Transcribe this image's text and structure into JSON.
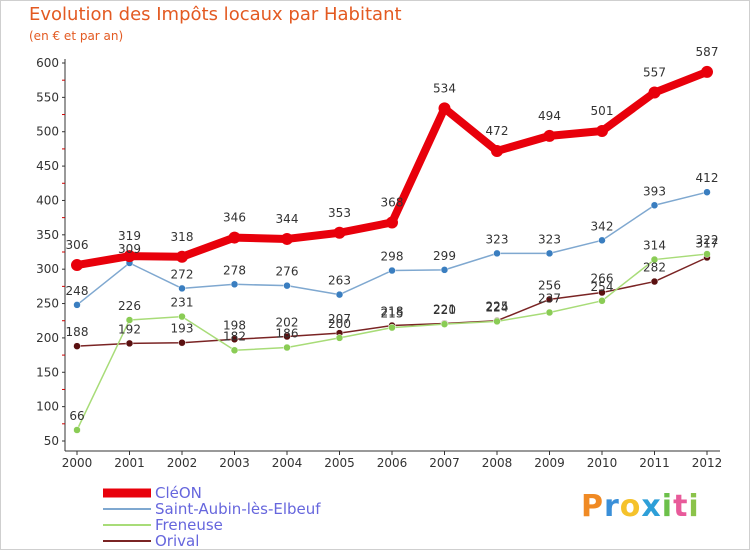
{
  "header": {
    "title": "Evolution des Impôts locaux par Habitant",
    "subtitle": "(en € et par an)"
  },
  "logo": {
    "letters": [
      "P",
      "r",
      "o",
      "x",
      "i",
      "t",
      "i"
    ],
    "colors": [
      "#f08a24",
      "#3a8fd8",
      "#f5c22b",
      "#2e9fd8",
      "#6cc04a",
      "#e85a9a",
      "#8bc34a"
    ]
  },
  "chart_data": {
    "type": "line",
    "x": [
      "2000",
      "2001",
      "2002",
      "2003",
      "2004",
      "2005",
      "2006",
      "2007",
      "2008",
      "2009",
      "2010",
      "2011",
      "2012"
    ],
    "ylim": [
      50,
      600
    ],
    "yticks": [
      50,
      100,
      150,
      200,
      250,
      300,
      350,
      400,
      450,
      500,
      550,
      600
    ],
    "grid": false,
    "legend_position": "bottom-left",
    "series": [
      {
        "name": "CléON",
        "color": "#e8000b",
        "marker_color": "#e8000b",
        "values": [
          306,
          319,
          318,
          346,
          344,
          353,
          368,
          534,
          472,
          494,
          501,
          557,
          587
        ],
        "labels": [
          "306",
          "319",
          "318",
          "346",
          "344",
          "353",
          "368",
          "534",
          "472",
          "494",
          "501",
          "557",
          "587"
        ]
      },
      {
        "name": "Saint-Aubin-lès-Elbeuf",
        "color": "#7fa8d0",
        "marker_color": "#3a7ec0",
        "values": [
          248,
          309,
          272,
          278,
          276,
          263,
          298,
          299,
          323,
          323,
          342,
          393,
          412
        ],
        "labels": [
          "248",
          "309",
          "272",
          "278",
          "276",
          "263",
          "298",
          "299",
          "323",
          "323",
          "342",
          "393",
          "412"
        ]
      },
      {
        "name": "Freneuse",
        "color": "#a8dc78",
        "marker_color": "#8acc55",
        "values": [
          66,
          226,
          231,
          182,
          186,
          200,
          215,
          220,
          224,
          237,
          254,
          314,
          322
        ],
        "labels": [
          "66",
          "226",
          "231",
          "182",
          "186",
          "200",
          "215",
          "220",
          "224",
          "237",
          "254",
          "314",
          "322"
        ]
      },
      {
        "name": "Orival",
        "color": "#7a2424",
        "marker_color": "#5a1010",
        "values": [
          188,
          192,
          193,
          198,
          202,
          207,
          218,
          221,
          225,
          256,
          266,
          282,
          317
        ],
        "labels": [
          "188",
          "192",
          "193",
          "198",
          "202",
          "207",
          "218",
          "221",
          "225",
          "256",
          "266",
          "282",
          "317"
        ]
      }
    ]
  }
}
